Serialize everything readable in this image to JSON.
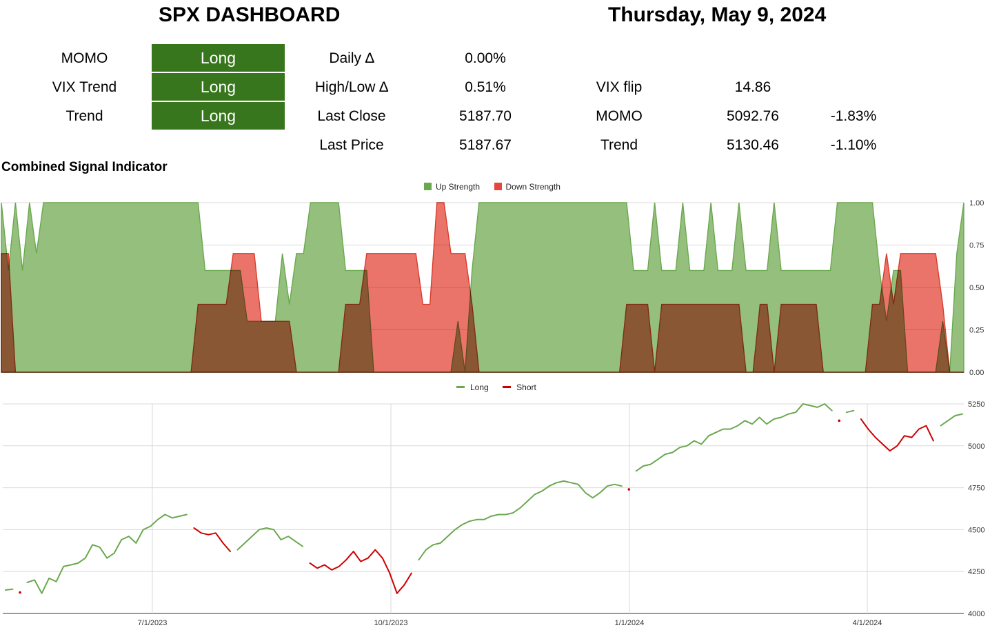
{
  "header": {
    "title": "SPX DASHBOARD",
    "date": "Thursday, May 9, 2024"
  },
  "signals": [
    {
      "label": "MOMO",
      "value": "Long"
    },
    {
      "label": "VIX Trend",
      "value": "Long"
    },
    {
      "label": "Trend",
      "value": "Long"
    }
  ],
  "metrics": [
    {
      "label": "Daily ∆",
      "value": "0.00%"
    },
    {
      "label": "High/Low ∆",
      "value": "0.51%"
    },
    {
      "label": "Last Close",
      "value": "5187.70"
    },
    {
      "label": "Last Price",
      "value": "5187.67"
    }
  ],
  "levels": [
    {
      "label": "VIX flip",
      "value": "14.86",
      "pct": ""
    },
    {
      "label": "MOMO",
      "value": "5092.76",
      "pct": "-1.83%"
    },
    {
      "label": "Trend",
      "value": "5130.46",
      "pct": "-1.10%"
    }
  ],
  "colors": {
    "signal_bg": "#38761d",
    "up_fill": "#8fbc75",
    "up_stroke": "#6aa84f",
    "down_fill": "#ea6d62",
    "down_stroke": "#d93a2b",
    "long_line": "#6aa84f",
    "short_line": "#cc0000"
  },
  "chart_data": [
    {
      "type": "area",
      "title": "Combined Signal Indicator",
      "legend_position": "top",
      "series": [
        {
          "name": "Up Strength",
          "values": [
            1.0,
            0.6,
            1.0,
            0.6,
            1.0,
            0.7,
            1.0,
            1.0,
            1.0,
            1.0,
            1.0,
            1.0,
            1.0,
            1.0,
            1.0,
            1.0,
            1.0,
            1.0,
            1.0,
            1.0,
            1.0,
            1.0,
            1.0,
            1.0,
            1.0,
            1.0,
            1.0,
            1.0,
            1.0,
            0.6,
            0.6,
            0.6,
            0.6,
            0.6,
            0.6,
            0.3,
            0.3,
            0.3,
            0.3,
            0.3,
            0.7,
            0.4,
            0.7,
            0.7,
            1.0,
            1.0,
            1.0,
            1.0,
            1.0,
            0.6,
            0.6,
            0.6,
            0.6,
            0.0,
            0.0,
            0.0,
            0.0,
            0.0,
            0.0,
            0.0,
            0.0,
            0.0,
            0.0,
            0.0,
            0.0,
            0.3,
            0.0,
            0.6,
            1.0,
            1.0,
            1.0,
            1.0,
            1.0,
            1.0,
            1.0,
            1.0,
            1.0,
            1.0,
            1.0,
            1.0,
            1.0,
            1.0,
            1.0,
            1.0,
            1.0,
            1.0,
            1.0,
            1.0,
            1.0,
            1.0,
            0.6,
            0.6,
            0.6,
            1.0,
            0.6,
            0.6,
            0.6,
            1.0,
            0.6,
            0.6,
            0.6,
            1.0,
            0.6,
            0.6,
            0.6,
            1.0,
            0.6,
            0.6,
            0.6,
            0.6,
            1.0,
            0.6,
            0.6,
            0.6,
            0.6,
            0.6,
            0.6,
            0.6,
            0.6,
            1.0,
            1.0,
            1.0,
            1.0,
            1.0,
            1.0,
            0.6,
            0.3,
            0.6,
            0.6,
            0.0,
            0.0,
            0.0,
            0.0,
            0.0,
            0.3,
            0.0,
            0.7,
            1.0
          ]
        },
        {
          "name": "Down Strength",
          "values": [
            0.7,
            0.7,
            0.0,
            0.0,
            0.0,
            0.0,
            0.0,
            0.0,
            0.0,
            0.0,
            0.0,
            0.0,
            0.0,
            0.0,
            0.0,
            0.0,
            0.0,
            0.0,
            0.0,
            0.0,
            0.0,
            0.0,
            0.0,
            0.0,
            0.0,
            0.0,
            0.0,
            0.0,
            0.4,
            0.4,
            0.4,
            0.4,
            0.4,
            0.7,
            0.7,
            0.7,
            0.7,
            0.3,
            0.3,
            0.3,
            0.3,
            0.3,
            0.0,
            0.0,
            0.0,
            0.0,
            0.0,
            0.0,
            0.0,
            0.4,
            0.4,
            0.4,
            0.7,
            0.7,
            0.7,
            0.7,
            0.7,
            0.7,
            0.7,
            0.7,
            0.4,
            0.4,
            1.0,
            1.0,
            0.7,
            0.7,
            0.7,
            0.4,
            0.0,
            0.0,
            0.0,
            0.0,
            0.0,
            0.0,
            0.0,
            0.0,
            0.0,
            0.0,
            0.0,
            0.0,
            0.0,
            0.0,
            0.0,
            0.0,
            0.0,
            0.0,
            0.0,
            0.0,
            0.0,
            0.4,
            0.4,
            0.4,
            0.4,
            0.0,
            0.4,
            0.4,
            0.4,
            0.4,
            0.4,
            0.4,
            0.4,
            0.4,
            0.4,
            0.4,
            0.4,
            0.4,
            0.0,
            0.0,
            0.4,
            0.4,
            0.0,
            0.4,
            0.4,
            0.4,
            0.4,
            0.4,
            0.4,
            0.0,
            0.0,
            0.0,
            0.0,
            0.0,
            0.0,
            0.0,
            0.4,
            0.4,
            0.7,
            0.4,
            0.7,
            0.7,
            0.7,
            0.7,
            0.7,
            0.7,
            0.4,
            0.0,
            0.0,
            0.0
          ]
        }
      ],
      "y_ticks": [
        "0.00",
        "0.25",
        "0.50",
        "0.75",
        "1.00"
      ],
      "ylim": [
        0,
        1
      ]
    },
    {
      "type": "line",
      "legend_position": "top",
      "series": [
        {
          "name": "Long"
        },
        {
          "name": "Short"
        }
      ],
      "x_ticks": [
        "7/1/2023",
        "10/1/2023",
        "1/1/2024",
        "4/1/2024"
      ],
      "y_ticks": [
        "4000",
        "4250",
        "4500",
        "4750",
        "5000",
        "5250"
      ],
      "ylim": [
        4000,
        5250
      ],
      "points": [
        4140,
        4145,
        4125,
        4185,
        4200,
        4120,
        4210,
        4190,
        4280,
        4290,
        4300,
        4330,
        4410,
        4395,
        4330,
        4360,
        4440,
        4460,
        4420,
        4500,
        4520,
        4560,
        4590,
        4570,
        4580,
        4590,
        4510,
        4480,
        4470,
        4480,
        4420,
        4370,
        4380,
        4420,
        4460,
        4500,
        4510,
        4500,
        4440,
        4460,
        4430,
        4400,
        4300,
        4270,
        4290,
        4260,
        4280,
        4320,
        4370,
        4310,
        4330,
        4380,
        4330,
        4240,
        4120,
        4170,
        4240,
        4320,
        4380,
        4410,
        4420,
        4460,
        4500,
        4530,
        4550,
        4560,
        4560,
        4580,
        4590,
        4590,
        4600,
        4630,
        4670,
        4710,
        4730,
        4760,
        4780,
        4790,
        4780,
        4770,
        4720,
        4690,
        4720,
        4760,
        4770,
        4760,
        4740,
        4850,
        4880,
        4890,
        4920,
        4950,
        4960,
        4990,
        5000,
        5030,
        5010,
        5060,
        5080,
        5100,
        5100,
        5120,
        5150,
        5130,
        5170,
        5130,
        5160,
        5170,
        5190,
        5200,
        5250,
        5240,
        5230,
        5250,
        5210,
        5150,
        5200,
        5210,
        5160,
        5100,
        5050,
        5010,
        4970,
        5000,
        5060,
        5050,
        5100,
        5120,
        5030,
        5120,
        5150,
        5180,
        5190
      ],
      "states": [
        "L",
        "L",
        "S",
        "L",
        "L",
        "L",
        "L",
        "L",
        "L",
        "L",
        "L",
        "L",
        "L",
        "L",
        "L",
        "L",
        "L",
        "L",
        "L",
        "L",
        "L",
        "L",
        "L",
        "L",
        "L",
        "L",
        "S",
        "S",
        "S",
        "S",
        "S",
        "S",
        "L",
        "L",
        "L",
        "L",
        "L",
        "L",
        "L",
        "L",
        "L",
        "L",
        "S",
        "S",
        "S",
        "S",
        "S",
        "S",
        "S",
        "S",
        "S",
        "S",
        "S",
        "S",
        "S",
        "S",
        "S",
        "L",
        "L",
        "L",
        "L",
        "L",
        "L",
        "L",
        "L",
        "L",
        "L",
        "L",
        "L",
        "L",
        "L",
        "L",
        "L",
        "L",
        "L",
        "L",
        "L",
        "L",
        "L",
        "L",
        "L",
        "L",
        "L",
        "L",
        "L",
        "L",
        "S",
        "L",
        "L",
        "L",
        "L",
        "L",
        "L",
        "L",
        "L",
        "L",
        "L",
        "L",
        "L",
        "L",
        "L",
        "L",
        "L",
        "L",
        "L",
        "L",
        "L",
        "L",
        "L",
        "L",
        "L",
        "L",
        "L",
        "L",
        "L",
        "S",
        "L",
        "L",
        "S",
        "S",
        "S",
        "S",
        "S",
        "S",
        "S",
        "S",
        "S",
        "S",
        "S",
        "L",
        "L",
        "L",
        "L"
      ]
    }
  ]
}
